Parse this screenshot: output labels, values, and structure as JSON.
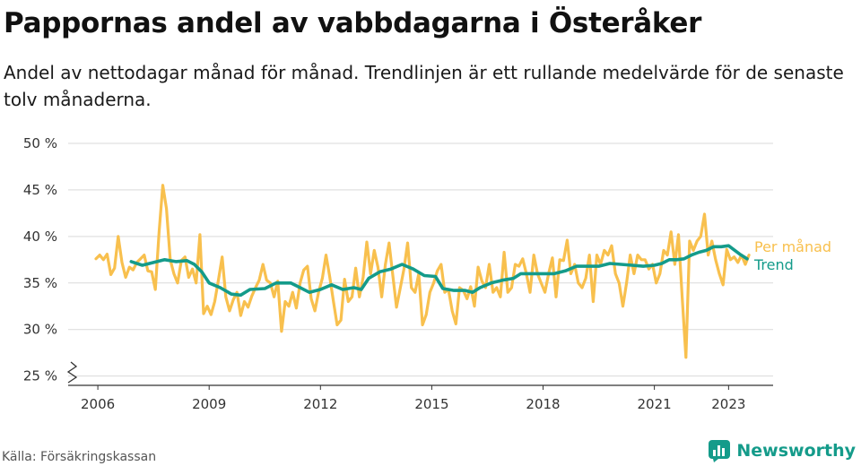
{
  "title": "Pappornas andel av vabbdagarna i Österåker",
  "subtitle": "Andel av nettodagar månad för månad. Trendlinjen är ett rullande medelvärde för de senaste tolv månaderna.",
  "source": "Källa: Försäkringskassan",
  "brand": "Newsworthy",
  "colors": {
    "monthly": "#f8c04e",
    "trend": "#149b8a",
    "grid": "#d9d9d9",
    "axis": "#333333"
  },
  "icons": {
    "logo": "bar-chart-icon",
    "axis_break": "axis-break-icon"
  },
  "chart_data": {
    "type": "line",
    "x_ticks": [
      {
        "label": "2006",
        "value": 2006.0
      },
      {
        "label": "2009",
        "value": 2009.0
      },
      {
        "label": "2012",
        "value": 2012.0
      },
      {
        "label": "2015",
        "value": 2015.0
      },
      {
        "label": "2018",
        "value": 2018.0
      },
      {
        "label": "2021",
        "value": 2021.0
      },
      {
        "label": "2023",
        "value": 2023.0
      }
    ],
    "y_ticks": [
      {
        "label": "25 %",
        "value": 25
      },
      {
        "label": "30 %",
        "value": 30
      },
      {
        "label": "35 %",
        "value": 35
      },
      {
        "label": "40 %",
        "value": 40
      },
      {
        "label": "45 %",
        "value": 45
      },
      {
        "label": "50 %",
        "value": 50
      }
    ],
    "xlim": [
      2005.2,
      2024.2
    ],
    "ylim": [
      24,
      50
    ],
    "y_axis_break": true,
    "grid": "horizontal",
    "series": [
      {
        "name": "Per månad",
        "points": [
          [
            2005.95,
            37.6
          ],
          [
            2006.05,
            38.0
          ],
          [
            2006.15,
            37.5
          ],
          [
            2006.25,
            38.1
          ],
          [
            2006.35,
            35.9
          ],
          [
            2006.45,
            36.6
          ],
          [
            2006.55,
            40.0
          ],
          [
            2006.65,
            37.2
          ],
          [
            2006.75,
            35.6
          ],
          [
            2006.85,
            36.7
          ],
          [
            2006.95,
            36.4
          ],
          [
            2007.05,
            37.2
          ],
          [
            2007.15,
            37.6
          ],
          [
            2007.25,
            38.0
          ],
          [
            2007.35,
            36.3
          ],
          [
            2007.45,
            36.2
          ],
          [
            2007.55,
            34.3
          ],
          [
            2007.65,
            40.5
          ],
          [
            2007.75,
            45.5
          ],
          [
            2007.85,
            43.0
          ],
          [
            2007.95,
            37.5
          ],
          [
            2008.05,
            36.0
          ],
          [
            2008.15,
            35.0
          ],
          [
            2008.25,
            37.4
          ],
          [
            2008.35,
            37.8
          ],
          [
            2008.45,
            35.6
          ],
          [
            2008.55,
            36.5
          ],
          [
            2008.65,
            35.0
          ],
          [
            2008.75,
            40.2
          ],
          [
            2008.85,
            31.7
          ],
          [
            2008.95,
            32.5
          ],
          [
            2009.05,
            31.6
          ],
          [
            2009.15,
            33.0
          ],
          [
            2009.25,
            35.3
          ],
          [
            2009.35,
            37.8
          ],
          [
            2009.45,
            33.5
          ],
          [
            2009.55,
            32.0
          ],
          [
            2009.65,
            33.2
          ],
          [
            2009.75,
            34.0
          ],
          [
            2009.85,
            31.5
          ],
          [
            2009.95,
            33.0
          ],
          [
            2010.05,
            32.4
          ],
          [
            2010.15,
            33.6
          ],
          [
            2010.25,
            34.5
          ],
          [
            2010.35,
            35.3
          ],
          [
            2010.45,
            37.0
          ],
          [
            2010.55,
            35.3
          ],
          [
            2010.65,
            35.0
          ],
          [
            2010.75,
            33.5
          ],
          [
            2010.85,
            35.2
          ],
          [
            2010.95,
            29.8
          ],
          [
            2011.05,
            33.0
          ],
          [
            2011.15,
            32.5
          ],
          [
            2011.25,
            34.0
          ],
          [
            2011.35,
            32.3
          ],
          [
            2011.45,
            35.0
          ],
          [
            2011.55,
            36.4
          ],
          [
            2011.65,
            36.8
          ],
          [
            2011.75,
            33.3
          ],
          [
            2011.85,
            32.0
          ],
          [
            2011.95,
            34.0
          ],
          [
            2012.05,
            35.5
          ],
          [
            2012.15,
            38.0
          ],
          [
            2012.25,
            35.7
          ],
          [
            2012.35,
            33.0
          ],
          [
            2012.45,
            30.5
          ],
          [
            2012.55,
            31.0
          ],
          [
            2012.65,
            35.4
          ],
          [
            2012.75,
            33.0
          ],
          [
            2012.85,
            33.5
          ],
          [
            2012.95,
            36.6
          ],
          [
            2013.05,
            33.5
          ],
          [
            2013.15,
            35.6
          ],
          [
            2013.25,
            39.4
          ],
          [
            2013.35,
            36.0
          ],
          [
            2013.45,
            38.5
          ],
          [
            2013.55,
            36.7
          ],
          [
            2013.65,
            33.5
          ],
          [
            2013.75,
            37.0
          ],
          [
            2013.85,
            39.3
          ],
          [
            2013.95,
            35.8
          ],
          [
            2014.05,
            32.4
          ],
          [
            2014.15,
            34.4
          ],
          [
            2014.25,
            36.5
          ],
          [
            2014.35,
            39.3
          ],
          [
            2014.45,
            34.5
          ],
          [
            2014.55,
            34.0
          ],
          [
            2014.65,
            36.0
          ],
          [
            2014.75,
            30.5
          ],
          [
            2014.85,
            31.6
          ],
          [
            2014.95,
            34.0
          ],
          [
            2015.05,
            35.0
          ],
          [
            2015.15,
            36.3
          ],
          [
            2015.25,
            37.0
          ],
          [
            2015.35,
            34.0
          ],
          [
            2015.45,
            34.3
          ],
          [
            2015.55,
            32.0
          ],
          [
            2015.65,
            30.6
          ],
          [
            2015.75,
            34.5
          ],
          [
            2015.85,
            34.2
          ],
          [
            2015.95,
            33.3
          ],
          [
            2016.05,
            34.6
          ],
          [
            2016.15,
            32.5
          ],
          [
            2016.25,
            36.7
          ],
          [
            2016.35,
            35.2
          ],
          [
            2016.45,
            34.5
          ],
          [
            2016.55,
            37.0
          ],
          [
            2016.65,
            34.0
          ],
          [
            2016.75,
            34.5
          ],
          [
            2016.85,
            33.5
          ],
          [
            2016.95,
            38.3
          ],
          [
            2017.05,
            34.0
          ],
          [
            2017.15,
            34.5
          ],
          [
            2017.25,
            37.0
          ],
          [
            2017.35,
            36.8
          ],
          [
            2017.45,
            37.6
          ],
          [
            2017.55,
            36.0
          ],
          [
            2017.65,
            34.0
          ],
          [
            2017.75,
            38.0
          ],
          [
            2017.85,
            36.0
          ],
          [
            2017.95,
            35.0
          ],
          [
            2018.05,
            34.0
          ],
          [
            2018.15,
            36.0
          ],
          [
            2018.25,
            37.7
          ],
          [
            2018.35,
            33.5
          ],
          [
            2018.45,
            37.5
          ],
          [
            2018.55,
            37.4
          ],
          [
            2018.65,
            39.6
          ],
          [
            2018.75,
            36.0
          ],
          [
            2018.85,
            37.0
          ],
          [
            2018.95,
            35.0
          ],
          [
            2019.05,
            34.5
          ],
          [
            2019.15,
            35.5
          ],
          [
            2019.25,
            38.0
          ],
          [
            2019.35,
            33.0
          ],
          [
            2019.45,
            38.0
          ],
          [
            2019.55,
            37.0
          ],
          [
            2019.65,
            38.5
          ],
          [
            2019.75,
            38.0
          ],
          [
            2019.85,
            39.0
          ],
          [
            2019.95,
            36.0
          ],
          [
            2020.05,
            35.0
          ],
          [
            2020.15,
            32.5
          ],
          [
            2020.25,
            35.0
          ],
          [
            2020.35,
            38.0
          ],
          [
            2020.45,
            36.0
          ],
          [
            2020.55,
            38.0
          ],
          [
            2020.65,
            37.5
          ],
          [
            2020.75,
            37.5
          ],
          [
            2020.85,
            36.5
          ],
          [
            2020.95,
            37.0
          ],
          [
            2021.05,
            35.0
          ],
          [
            2021.15,
            36.0
          ],
          [
            2021.25,
            38.5
          ],
          [
            2021.35,
            38.0
          ],
          [
            2021.45,
            40.5
          ],
          [
            2021.55,
            37.0
          ],
          [
            2021.65,
            40.2
          ],
          [
            2021.75,
            33.5
          ],
          [
            2021.85,
            27.0
          ],
          [
            2021.95,
            39.5
          ],
          [
            2022.05,
            38.5
          ],
          [
            2022.15,
            39.5
          ],
          [
            2022.25,
            40.0
          ],
          [
            2022.35,
            42.4
          ],
          [
            2022.45,
            38.0
          ],
          [
            2022.55,
            39.5
          ],
          [
            2022.65,
            37.5
          ],
          [
            2022.75,
            36.0
          ],
          [
            2022.85,
            34.8
          ],
          [
            2022.95,
            38.6
          ],
          [
            2023.05,
            37.5
          ],
          [
            2023.15,
            37.8
          ],
          [
            2023.25,
            37.2
          ],
          [
            2023.35,
            38.0
          ],
          [
            2023.45,
            37.0
          ],
          [
            2023.55,
            38.0
          ]
        ]
      },
      {
        "name": "Trend",
        "points": [
          [
            2006.9,
            37.3
          ],
          [
            2007.2,
            36.9
          ],
          [
            2007.5,
            37.2
          ],
          [
            2007.8,
            37.5
          ],
          [
            2008.1,
            37.3
          ],
          [
            2008.4,
            37.4
          ],
          [
            2008.6,
            37.0
          ],
          [
            2008.8,
            36.2
          ],
          [
            2009.0,
            35.0
          ],
          [
            2009.3,
            34.5
          ],
          [
            2009.6,
            33.8
          ],
          [
            2009.85,
            33.7
          ],
          [
            2010.1,
            34.3
          ],
          [
            2010.5,
            34.4
          ],
          [
            2010.8,
            35.0
          ],
          [
            2011.2,
            35.0
          ],
          [
            2011.4,
            34.6
          ],
          [
            2011.7,
            34.0
          ],
          [
            2012.0,
            34.3
          ],
          [
            2012.3,
            34.8
          ],
          [
            2012.6,
            34.3
          ],
          [
            2012.9,
            34.5
          ],
          [
            2013.1,
            34.3
          ],
          [
            2013.3,
            35.5
          ],
          [
            2013.6,
            36.2
          ],
          [
            2013.9,
            36.5
          ],
          [
            2014.2,
            37.0
          ],
          [
            2014.5,
            36.5
          ],
          [
            2014.8,
            35.8
          ],
          [
            2015.1,
            35.7
          ],
          [
            2015.3,
            34.4
          ],
          [
            2015.6,
            34.2
          ],
          [
            2015.9,
            34.2
          ],
          [
            2016.1,
            34.0
          ],
          [
            2016.3,
            34.5
          ],
          [
            2016.6,
            35.0
          ],
          [
            2016.9,
            35.3
          ],
          [
            2017.2,
            35.5
          ],
          [
            2017.4,
            36.0
          ],
          [
            2017.7,
            36.0
          ],
          [
            2018.0,
            36.0
          ],
          [
            2018.3,
            36.0
          ],
          [
            2018.6,
            36.3
          ],
          [
            2018.9,
            36.8
          ],
          [
            2019.2,
            36.8
          ],
          [
            2019.5,
            36.8
          ],
          [
            2019.8,
            37.1
          ],
          [
            2020.1,
            37.0
          ],
          [
            2020.4,
            36.9
          ],
          [
            2020.7,
            36.8
          ],
          [
            2021.0,
            36.9
          ],
          [
            2021.2,
            37.1
          ],
          [
            2021.4,
            37.5
          ],
          [
            2021.6,
            37.5
          ],
          [
            2021.8,
            37.6
          ],
          [
            2022.0,
            38.0
          ],
          [
            2022.2,
            38.3
          ],
          [
            2022.4,
            38.5
          ],
          [
            2022.6,
            38.9
          ],
          [
            2022.8,
            38.9
          ],
          [
            2023.0,
            39.0
          ],
          [
            2023.1,
            38.7
          ],
          [
            2023.3,
            38.1
          ],
          [
            2023.5,
            37.6
          ]
        ]
      }
    ]
  }
}
